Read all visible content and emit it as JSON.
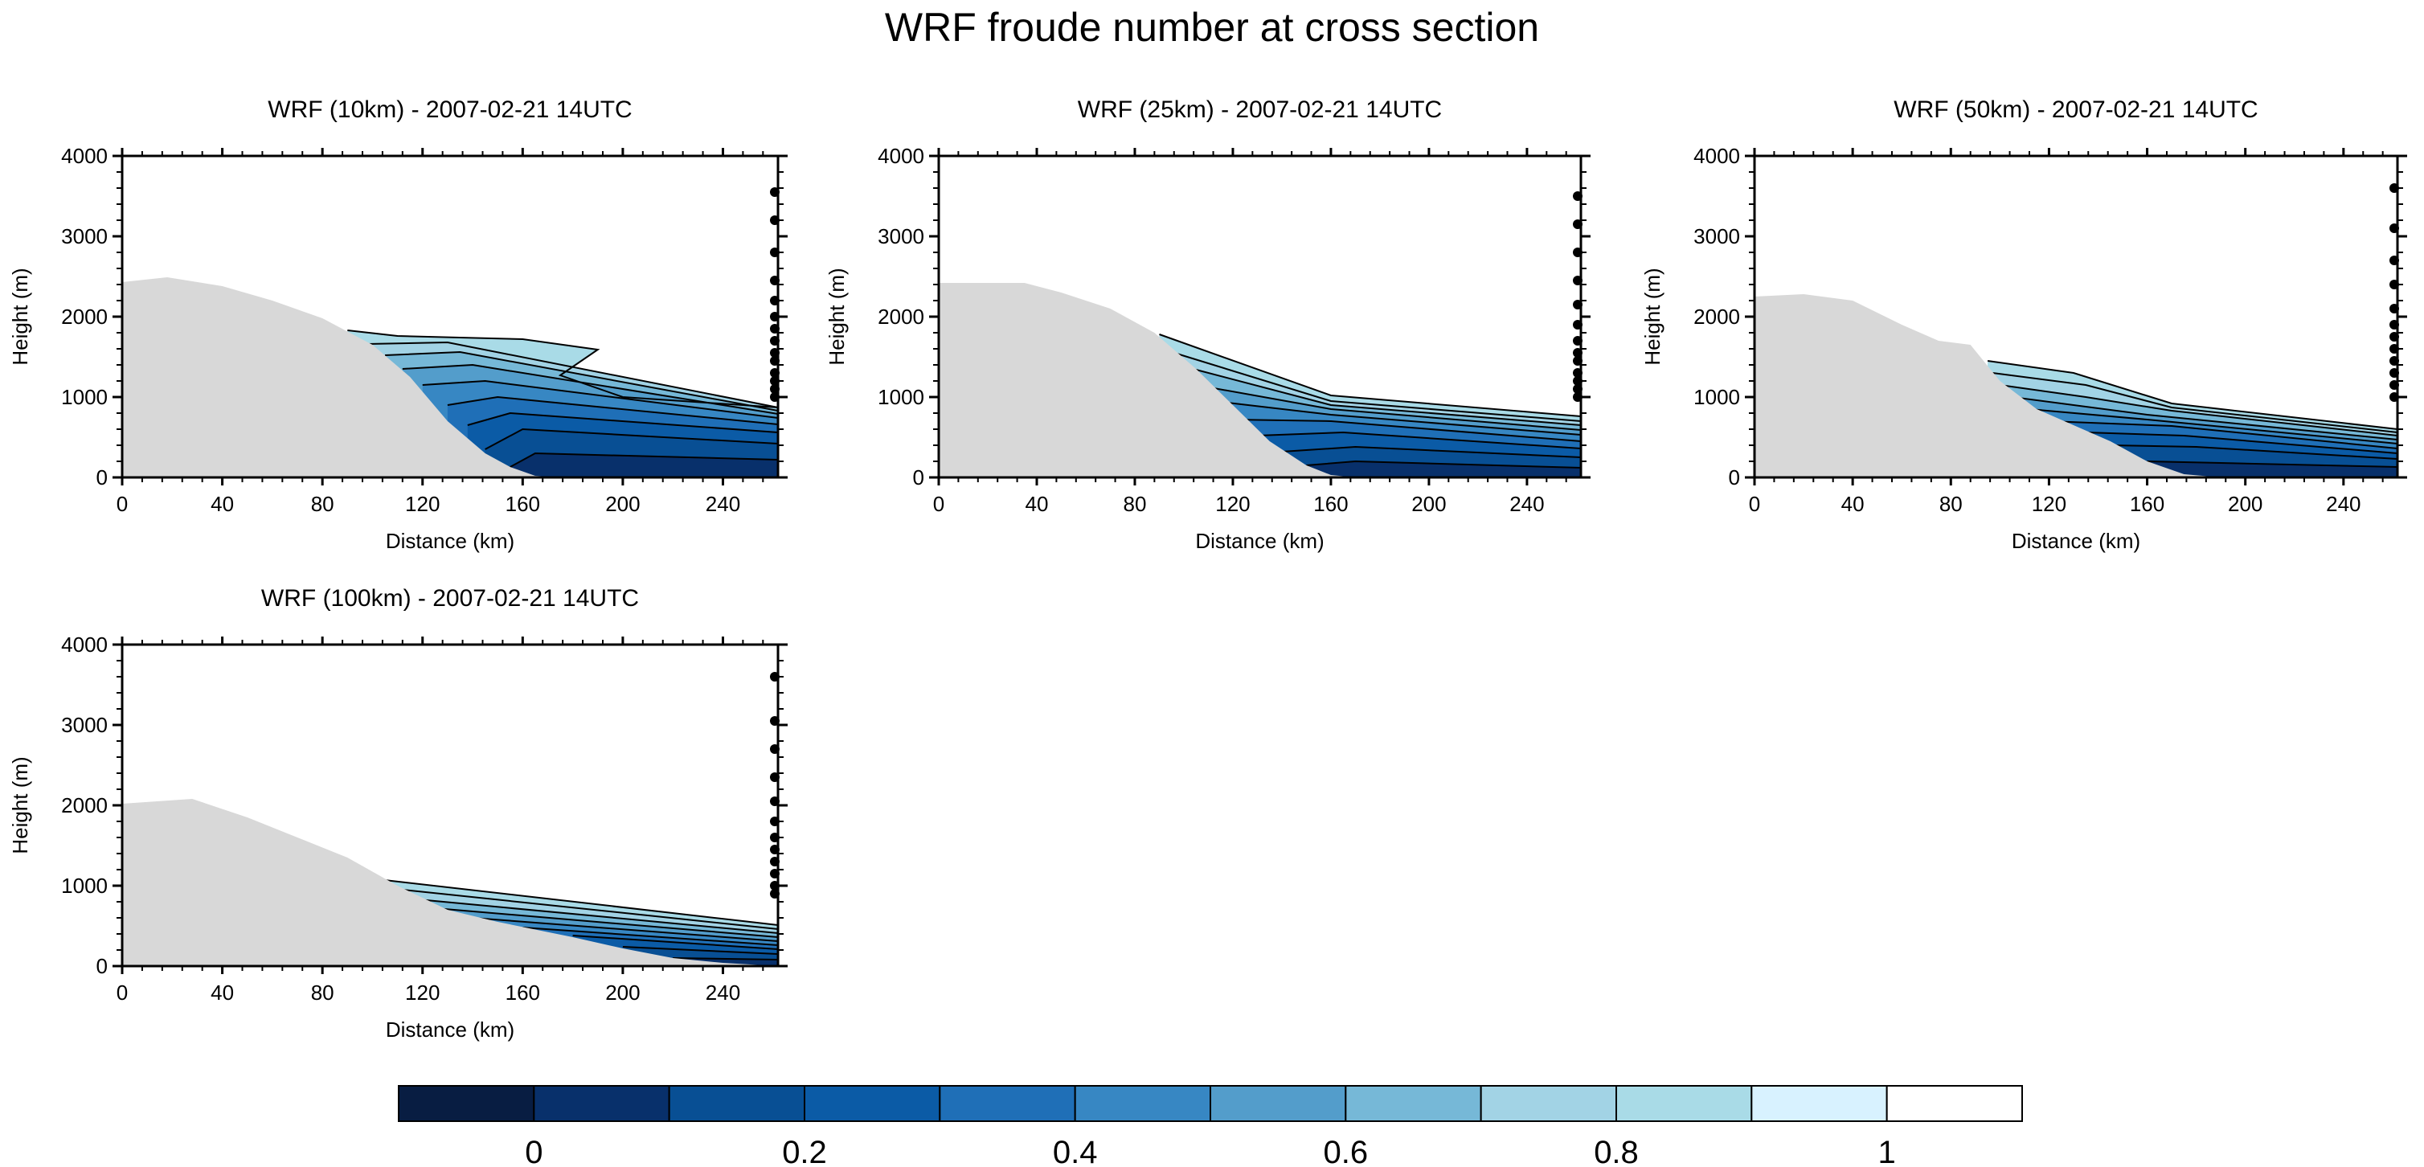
{
  "title": "WRF froude number at cross section",
  "colors": {
    "terrain": "#d8d8d8",
    "frame": "#000000",
    "contour_line": "#000000",
    "fill_levels": [
      "#081d42",
      "#08306b",
      "#084f94",
      "#0b5ba6",
      "#1f6fb7",
      "#3787c3",
      "#539dcb",
      "#76b8d7",
      "#a2d3e5",
      "#a9dbe7",
      "#d8f2ff",
      "#ffffff"
    ]
  },
  "colorbar": {
    "labels": [
      {
        "value": 0,
        "text": "0"
      },
      {
        "value": 0.2,
        "text": "0.2"
      },
      {
        "value": 0.4,
        "text": "0.4"
      },
      {
        "value": 0.6,
        "text": "0.6"
      },
      {
        "value": 0.8,
        "text": "0.8"
      },
      {
        "value": 1,
        "text": "1"
      }
    ],
    "boxes": 12,
    "first_edge": -0.1,
    "step": 0.1
  },
  "chart_data": [
    {
      "type": "area",
      "title": "WRF (10km) - 2007-02-21 14UTC",
      "xlabel": "Distance (km)",
      "ylabel": "Height (m)",
      "xlim": [
        0,
        262
      ],
      "ylim": [
        0,
        4000
      ],
      "xticks": [
        0,
        40,
        80,
        120,
        160,
        200,
        240
      ],
      "yticks": [
        0,
        1000,
        2000,
        3000,
        4000
      ],
      "terrain": [
        [
          0,
          2430
        ],
        [
          18,
          2490
        ],
        [
          40,
          2380
        ],
        [
          60,
          2200
        ],
        [
          80,
          1980
        ],
        [
          100,
          1650
        ],
        [
          115,
          1250
        ],
        [
          130,
          700
        ],
        [
          145,
          300
        ],
        [
          155,
          130
        ],
        [
          165,
          20
        ],
        [
          175,
          0
        ],
        [
          262,
          0
        ]
      ],
      "level_tops": [
        [
          [
            155,
            130
          ],
          [
            165,
            300
          ],
          [
            262,
            220
          ]
        ],
        [
          [
            145,
            350
          ],
          [
            160,
            600
          ],
          [
            262,
            420
          ]
        ],
        [
          [
            138,
            650
          ],
          [
            155,
            800
          ],
          [
            262,
            560
          ]
        ],
        [
          [
            130,
            900
          ],
          [
            150,
            1000
          ],
          [
            262,
            660
          ]
        ],
        [
          [
            120,
            1150
          ],
          [
            145,
            1200
          ],
          [
            262,
            740
          ]
        ],
        [
          [
            112,
            1350
          ],
          [
            140,
            1400
          ],
          [
            262,
            790
          ]
        ],
        [
          [
            105,
            1520
          ],
          [
            135,
            1560
          ],
          [
            262,
            830
          ]
        ],
        [
          [
            98,
            1660
          ],
          [
            130,
            1680
          ],
          [
            262,
            870
          ]
        ],
        [
          [
            90,
            1830
          ],
          [
            110,
            1760
          ],
          [
            160,
            1720
          ],
          [
            190,
            1590
          ],
          [
            175,
            1270
          ],
          [
            200,
            1000
          ],
          [
            262,
            870
          ]
        ]
      ],
      "station_heights": [
        1000,
        1100,
        1200,
        1300,
        1450,
        1550,
        1700,
        1850,
        2000,
        2200,
        2450,
        2800,
        3200,
        3550
      ]
    },
    {
      "type": "area",
      "title": "WRF (25km) - 2007-02-21 14UTC",
      "xlabel": "Distance (km)",
      "ylabel": "Height (m)",
      "xlim": [
        0,
        262
      ],
      "ylim": [
        0,
        4000
      ],
      "xticks": [
        0,
        40,
        80,
        120,
        160,
        200,
        240
      ],
      "yticks": [
        0,
        1000,
        2000,
        3000,
        4000
      ],
      "terrain": [
        [
          0,
          2420
        ],
        [
          35,
          2420
        ],
        [
          50,
          2300
        ],
        [
          70,
          2100
        ],
        [
          88,
          1800
        ],
        [
          105,
          1350
        ],
        [
          120,
          900
        ],
        [
          135,
          450
        ],
        [
          150,
          150
        ],
        [
          160,
          30
        ],
        [
          170,
          0
        ],
        [
          262,
          0
        ]
      ],
      "level_tops": [
        [
          [
            150,
            150
          ],
          [
            170,
            200
          ],
          [
            262,
            120
          ]
        ],
        [
          [
            140,
            320
          ],
          [
            170,
            380
          ],
          [
            262,
            250
          ]
        ],
        [
          [
            130,
            520
          ],
          [
            165,
            560
          ],
          [
            262,
            360
          ]
        ],
        [
          [
            120,
            720
          ],
          [
            160,
            700
          ],
          [
            262,
            450
          ]
        ],
        [
          [
            112,
            950
          ],
          [
            160,
            780
          ],
          [
            262,
            530
          ]
        ],
        [
          [
            105,
            1150
          ],
          [
            160,
            850
          ],
          [
            262,
            590
          ]
        ],
        [
          [
            100,
            1380
          ],
          [
            160,
            900
          ],
          [
            262,
            650
          ]
        ],
        [
          [
            95,
            1560
          ],
          [
            160,
            950
          ],
          [
            262,
            700
          ]
        ],
        [
          [
            90,
            1780
          ],
          [
            160,
            1020
          ],
          [
            262,
            760
          ]
        ]
      ],
      "station_heights": [
        1000,
        1100,
        1200,
        1300,
        1450,
        1550,
        1700,
        1900,
        2150,
        2450,
        2800,
        3150,
        3500
      ]
    },
    {
      "type": "area",
      "title": "WRF (50km) - 2007-02-21 14UTC",
      "xlabel": "Distance (km)",
      "ylabel": "Height (m)",
      "xlim": [
        0,
        262
      ],
      "ylim": [
        0,
        4000
      ],
      "xticks": [
        0,
        40,
        80,
        120,
        160,
        200,
        240
      ],
      "yticks": [
        0,
        1000,
        2000,
        3000,
        4000
      ],
      "terrain": [
        [
          0,
          2250
        ],
        [
          20,
          2280
        ],
        [
          40,
          2200
        ],
        [
          60,
          1900
        ],
        [
          75,
          1700
        ],
        [
          88,
          1650
        ],
        [
          100,
          1200
        ],
        [
          115,
          850
        ],
        [
          130,
          650
        ],
        [
          145,
          450
        ],
        [
          160,
          200
        ],
        [
          175,
          40
        ],
        [
          190,
          0
        ],
        [
          262,
          0
        ]
      ],
      "level_tops": [
        [
          [
            160,
            200
          ],
          [
            190,
            180
          ],
          [
            262,
            130
          ]
        ],
        [
          [
            145,
            400
          ],
          [
            180,
            380
          ],
          [
            262,
            230
          ]
        ],
        [
          [
            135,
            560
          ],
          [
            175,
            520
          ],
          [
            262,
            300
          ]
        ],
        [
          [
            120,
            700
          ],
          [
            170,
            640
          ],
          [
            262,
            360
          ]
        ],
        [
          [
            112,
            850
          ],
          [
            160,
            720
          ],
          [
            262,
            420
          ]
        ],
        [
          [
            105,
            1000
          ],
          [
            160,
            780
          ],
          [
            262,
            470
          ]
        ],
        [
          [
            100,
            1150
          ],
          [
            135,
            1000
          ],
          [
            170,
            830
          ],
          [
            262,
            520
          ]
        ],
        [
          [
            97,
            1300
          ],
          [
            135,
            1150
          ],
          [
            170,
            870
          ],
          [
            262,
            560
          ]
        ],
        [
          [
            95,
            1450
          ],
          [
            130,
            1300
          ],
          [
            170,
            920
          ],
          [
            262,
            600
          ]
        ]
      ],
      "station_heights": [
        1000,
        1150,
        1300,
        1450,
        1600,
        1750,
        1900,
        2100,
        2400,
        2700,
        3100,
        3600
      ]
    },
    {
      "type": "area",
      "title": "WRF (100km) - 2007-02-21 14UTC",
      "xlabel": "Distance (km)",
      "ylabel": "Height (m)",
      "xlim": [
        0,
        262
      ],
      "ylim": [
        0,
        4000
      ],
      "xticks": [
        0,
        40,
        80,
        120,
        160,
        200,
        240
      ],
      "yticks": [
        0,
        1000,
        2000,
        3000,
        4000
      ],
      "terrain": [
        [
          0,
          2020
        ],
        [
          28,
          2080
        ],
        [
          50,
          1850
        ],
        [
          70,
          1600
        ],
        [
          90,
          1350
        ],
        [
          110,
          1000
        ],
        [
          130,
          700
        ],
        [
          150,
          550
        ],
        [
          180,
          360
        ],
        [
          200,
          220
        ],
        [
          220,
          100
        ],
        [
          240,
          40
        ],
        [
          262,
          0
        ]
      ],
      "level_tops": [
        [
          [
            220,
            100
          ],
          [
            262,
            80
          ]
        ],
        [
          [
            200,
            240
          ],
          [
            262,
            150
          ]
        ],
        [
          [
            180,
            380
          ],
          [
            262,
            210
          ]
        ],
        [
          [
            160,
            480
          ],
          [
            262,
            260
          ]
        ],
        [
          [
            140,
            600
          ],
          [
            262,
            310
          ]
        ],
        [
          [
            125,
            720
          ],
          [
            262,
            360
          ]
        ],
        [
          [
            118,
            830
          ],
          [
            262,
            410
          ]
        ],
        [
          [
            112,
            950
          ],
          [
            262,
            460
          ]
        ],
        [
          [
            102,
            1080
          ],
          [
            262,
            510
          ]
        ]
      ],
      "station_heights": [
        900,
        1000,
        1150,
        1300,
        1450,
        1600,
        1800,
        2050,
        2350,
        2700,
        3050,
        3600
      ]
    }
  ]
}
